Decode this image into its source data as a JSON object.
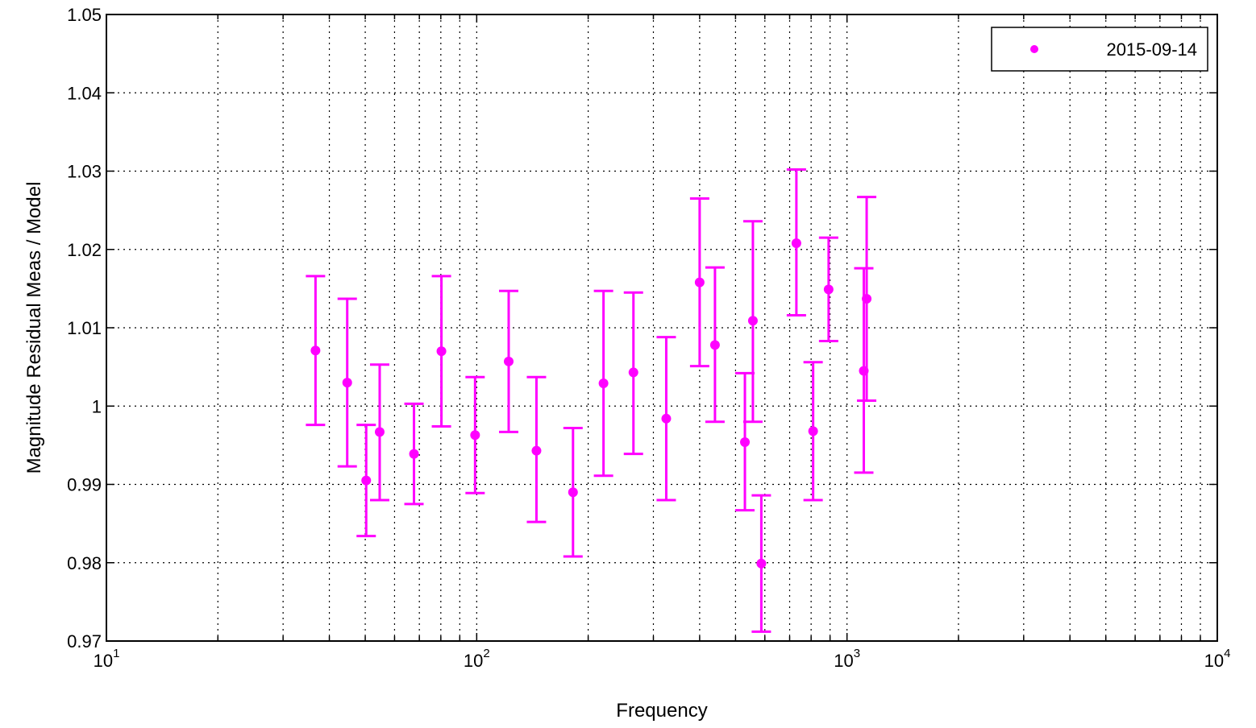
{
  "chart_data": {
    "type": "scatter",
    "title": "",
    "xlabel": "Frequency",
    "ylabel": "Magnitude Residual Meas / Model",
    "xscale": "log",
    "xlim": [
      10,
      10000
    ],
    "ylim": [
      0.97,
      1.05
    ],
    "grid": true,
    "legend_position": "top-right",
    "x_ticks": [
      {
        "value": 10,
        "base": "10",
        "exp": "1"
      },
      {
        "value": 100,
        "base": "10",
        "exp": "2"
      },
      {
        "value": 1000,
        "base": "10",
        "exp": "3"
      },
      {
        "value": 10000,
        "base": "10",
        "exp": "4"
      }
    ],
    "y_ticks": [
      {
        "value": 0.97,
        "label": "0.97"
      },
      {
        "value": 0.98,
        "label": "0.98"
      },
      {
        "value": 0.99,
        "label": "0.99"
      },
      {
        "value": 1.0,
        "label": "1"
      },
      {
        "value": 1.01,
        "label": "1.01"
      },
      {
        "value": 1.02,
        "label": "1.02"
      },
      {
        "value": 1.03,
        "label": "1.03"
      },
      {
        "value": 1.04,
        "label": "1.04"
      },
      {
        "value": 1.05,
        "label": "1.05"
      }
    ],
    "series": [
      {
        "name": "2015-09-14",
        "color": "#ff00ff",
        "points": [
          {
            "x": 36.7,
            "y": 1.0071,
            "lower": 0.9976,
            "upper": 1.0166
          },
          {
            "x": 44.7,
            "y": 1.003,
            "lower": 0.9923,
            "upper": 1.0137
          },
          {
            "x": 50.3,
            "y": 0.9905,
            "lower": 0.9834,
            "upper": 0.9976
          },
          {
            "x": 54.7,
            "y": 0.9967,
            "lower": 0.988,
            "upper": 1.0053
          },
          {
            "x": 67.7,
            "y": 0.9939,
            "lower": 0.9875,
            "upper": 1.0003
          },
          {
            "x": 80.3,
            "y": 1.007,
            "lower": 0.9974,
            "upper": 1.0166
          },
          {
            "x": 99.0,
            "y": 0.9963,
            "lower": 0.9889,
            "upper": 1.0037
          },
          {
            "x": 122.0,
            "y": 1.0057,
            "lower": 0.9967,
            "upper": 1.0147
          },
          {
            "x": 145.0,
            "y": 0.9943,
            "lower": 0.9852,
            "upper": 1.0037
          },
          {
            "x": 182.0,
            "y": 0.989,
            "lower": 0.9808,
            "upper": 0.9972
          },
          {
            "x": 220.0,
            "y": 1.0029,
            "lower": 0.9911,
            "upper": 1.0147
          },
          {
            "x": 265.0,
            "y": 1.0043,
            "lower": 0.9939,
            "upper": 1.0145
          },
          {
            "x": 325.0,
            "y": 0.9984,
            "lower": 0.988,
            "upper": 1.0088
          },
          {
            "x": 400.0,
            "y": 1.0158,
            "lower": 1.0051,
            "upper": 1.0265
          },
          {
            "x": 440.0,
            "y": 1.0078,
            "lower": 0.998,
            "upper": 1.0177
          },
          {
            "x": 530.0,
            "y": 0.9954,
            "lower": 0.9867,
            "upper": 1.0042
          },
          {
            "x": 557.0,
            "y": 1.0109,
            "lower": 0.998,
            "upper": 1.0236
          },
          {
            "x": 587.0,
            "y": 0.9799,
            "lower": 0.9712,
            "upper": 0.9886
          },
          {
            "x": 730.0,
            "y": 1.0208,
            "lower": 1.0116,
            "upper": 1.0302
          },
          {
            "x": 810.0,
            "y": 0.9968,
            "lower": 0.988,
            "upper": 1.0056
          },
          {
            "x": 892.0,
            "y": 1.0149,
            "lower": 1.0083,
            "upper": 1.0215
          },
          {
            "x": 1110.0,
            "y": 1.0045,
            "lower": 0.9915,
            "upper": 1.0176
          },
          {
            "x": 1130.0,
            "y": 1.0137,
            "lower": 1.0007,
            "upper": 1.0267
          }
        ]
      }
    ]
  }
}
